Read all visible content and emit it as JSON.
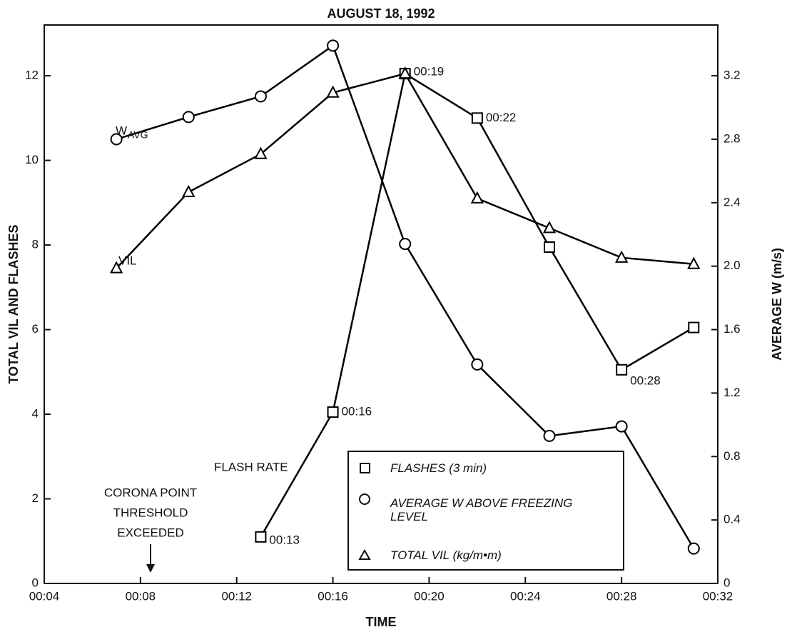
{
  "chart_data": {
    "type": "line",
    "title": "AUGUST 18, 1992",
    "x_label": "TIME",
    "y_label": "TOTAL VIL AND FLASHES",
    "y2_label": "AVERAGE W (m/s)",
    "xlim": [
      4,
      32
    ],
    "xticks": [
      {
        "value": 4,
        "label": "00:04"
      },
      {
        "value": 8,
        "label": "00:08"
      },
      {
        "value": 12,
        "label": "00:12"
      },
      {
        "value": 16,
        "label": "00:16"
      },
      {
        "value": 20,
        "label": "00:20"
      },
      {
        "value": 24,
        "label": "00:24"
      },
      {
        "value": 28,
        "label": "00:28"
      },
      {
        "value": 32,
        "label": "00:32"
      }
    ],
    "ylim": [
      0,
      13.2
    ],
    "yticks": [
      0,
      2,
      4,
      6,
      8,
      10,
      12
    ],
    "y2lim": [
      0,
      3.52
    ],
    "y2ticks": [
      0,
      0.4,
      0.8,
      1.2,
      1.6,
      {
        "value": 2,
        "label": "2.0"
      },
      2.4,
      2.8,
      3.2
    ],
    "series": [
      {
        "name": "FLASHES (3 min)",
        "color": "#000000",
        "marker": "square",
        "x": [
          13,
          16,
          19,
          22,
          25,
          28,
          31
        ],
        "values": [
          1.1,
          4.05,
          12.05,
          11.0,
          7.95,
          5.05,
          6.05
        ],
        "point_labels": [
          "00:13",
          "00:16",
          "00:19",
          "00:22",
          null,
          "00:28",
          null
        ]
      },
      {
        "name": "AVERAGE W ABOVE FREEZING LEVEL",
        "color": "#000000",
        "marker": "circle",
        "axis": "y2",
        "x": [
          7,
          10,
          13,
          16,
          19,
          22,
          25,
          28,
          31
        ],
        "values": [
          2.8,
          2.94,
          3.07,
          3.39,
          2.14,
          1.38,
          0.93,
          0.99,
          0.22
        ]
      },
      {
        "name": "TOTAL VIL (kg/m•m)",
        "color": "#000000",
        "marker": "triangle",
        "x": [
          7,
          10,
          13,
          16,
          19,
          22,
          25,
          28,
          31
        ],
        "values": [
          7.45,
          9.25,
          10.15,
          11.6,
          12.05,
          9.1,
          8.4,
          7.7,
          7.55
        ]
      }
    ],
    "annotations": {
      "w_main": "W",
      "w_sub": "AVG",
      "vil": "VIL",
      "flash_rate": "FLASH RATE",
      "corona": [
        "CORONA POINT",
        "THRESHOLD",
        "EXCEEDED"
      ]
    }
  }
}
